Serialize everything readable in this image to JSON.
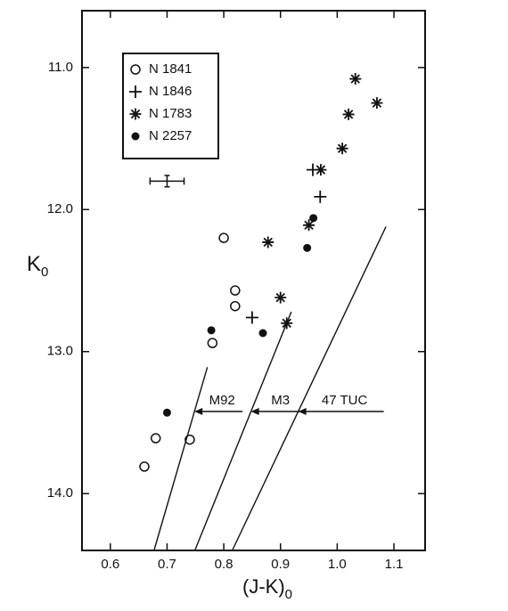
{
  "chart_data": {
    "type": "scatter",
    "xlabel": {
      "text": "(J-K)",
      "subscript": "0"
    },
    "ylabel": {
      "text": "K",
      "subscript": "0"
    },
    "xlim": [
      0.55,
      1.155
    ],
    "ylim": [
      14.4,
      10.6
    ],
    "xticks": [
      0.6,
      0.7,
      0.8,
      0.9,
      {
        "value": 1,
        "label": "1.0"
      },
      1.1
    ],
    "yticks": [
      {
        "value": 11,
        "label": "11.0"
      },
      {
        "value": 12,
        "label": "12.0"
      },
      {
        "value": 13,
        "label": "13.0"
      },
      {
        "value": 14,
        "label": "14.0"
      }
    ],
    "legend": "upper left",
    "series": [
      {
        "name": "N 1841",
        "marker": "open-circle",
        "color": "#111111",
        "x": [
          0.8,
          0.82,
          0.82,
          0.78,
          0.68,
          0.74,
          0.66
        ],
        "values": [
          12.2,
          12.57,
          12.68,
          12.94,
          13.61,
          13.62,
          13.81
        ]
      },
      {
        "name": "N 1846",
        "marker": "plus",
        "color": "#111111",
        "x": [
          0.957,
          0.97,
          0.85
        ],
        "values": [
          11.72,
          11.91,
          12.76
        ]
      },
      {
        "name": "N 1783",
        "marker": "asterisk",
        "color": "#111111",
        "x": [
          1.032,
          1.07,
          1.02,
          1.009,
          0.971,
          0.95,
          0.878,
          0.9,
          0.911
        ],
        "values": [
          11.08,
          11.25,
          11.33,
          11.57,
          11.72,
          12.11,
          12.23,
          12.62,
          12.8
        ]
      },
      {
        "name": "N 2257",
        "marker": "filled-circle",
        "color": "#111111",
        "x": [
          0.958,
          0.947,
          0.778,
          0.869,
          0.7
        ],
        "values": [
          12.06,
          12.27,
          12.85,
          12.87,
          13.43
        ]
      }
    ],
    "error_bar": {
      "x": 0.7,
      "y": 11.8,
      "xerr": 0.03,
      "yerr": 0.04
    },
    "lines": [
      {
        "name": "M92",
        "x": [
          0.677,
          0.771
        ],
        "y": [
          14.4,
          13.11
        ]
      },
      {
        "name": "M3",
        "x": [
          0.749,
          0.919
        ],
        "y": [
          14.4,
          12.72
        ]
      },
      {
        "name": "47 TUC",
        "x": [
          0.815,
          1.086
        ],
        "y": [
          14.4,
          12.12
        ]
      }
    ]
  }
}
